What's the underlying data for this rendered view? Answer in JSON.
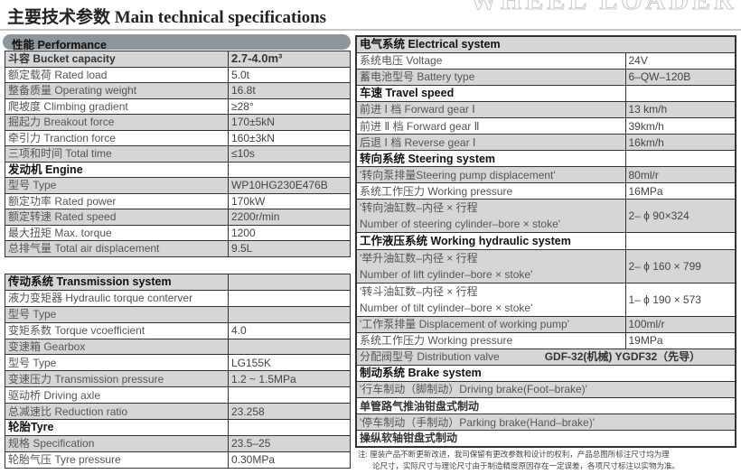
{
  "title": "主要技术参数 Main technical specifications",
  "performance_header": "性能 Performance",
  "performance": [
    {
      "label": "斗容 Bucket capacity",
      "value": "2.7-4.0m³",
      "style": "bold"
    },
    {
      "label": "额定载荷 Rated load",
      "value": "5.0t"
    },
    {
      "label": "整备质量 Operating weight",
      "value": "16.8t"
    },
    {
      "label": "爬坡度 Climbing gradient",
      "value": "≥28°"
    },
    {
      "label": "掘起力 Breakout force",
      "value": "170±5kN"
    },
    {
      "label": "牵引力 Tranction force",
      "value": "160±3kN"
    },
    {
      "label": "三项和时间 Total time",
      "value": "≤10s"
    },
    {
      "label": "发动机 Engine",
      "value": "",
      "header": true
    },
    {
      "label": "型号 Type",
      "value": "WP10HG230E476B"
    },
    {
      "label": "额定功率 Rated power",
      "value": "170kW"
    },
    {
      "label": "额定转速 Rated speed",
      "value": "2200r/min"
    },
    {
      "label": "最大扭矩 Max. torque",
      "value": "1200"
    },
    {
      "label": "总排气量 Total air displacement",
      "value": "9.5L"
    }
  ],
  "transmission": [
    {
      "label": "传动系统 Transmission system",
      "value": "",
      "header": true
    },
    {
      "label": "液力变矩器 Hydraulic torque conterver",
      "value": ""
    },
    {
      "label": "型号 Type",
      "value": ""
    },
    {
      "label": "变矩系数 Torque vcoefficient",
      "value": "4.0"
    },
    {
      "label": "变速箱 Gearbox",
      "value": ""
    },
    {
      "label": "型号 Type",
      "value": "LG155K"
    },
    {
      "label": "变速压力 Transmission pressure",
      "value": "1.2 ~ 1.5MPa"
    },
    {
      "label": "驱动桥 Driving axle",
      "value": ""
    },
    {
      "label": "总减速比 Reduction ratio",
      "value": "23.258"
    },
    {
      "label": "轮胎Tyre",
      "value": "",
      "header": true
    },
    {
      "label": "规格 Specification",
      "value": "23.5–25"
    },
    {
      "label": "轮胎气压 Tyre pressure",
      "value": "0.30MPa"
    }
  ],
  "right": [
    {
      "label": "电气系统 Electrical system",
      "header": true,
      "full": true
    },
    {
      "label": "系统电压 Voltage",
      "value": "24V"
    },
    {
      "label": "蓄电池型号 Battery type",
      "value": "6–QW–120B"
    },
    {
      "label": "车速 Travel speed",
      "value": "",
      "header": true
    },
    {
      "label": "前进 Ⅰ 档 Forward gear  Ⅰ",
      "value": "13 km/h"
    },
    {
      "label": "前进 Ⅱ 档 Forward gear  Ⅱ",
      "value": "39km/h"
    },
    {
      "label": "后退 Ⅰ 档 Reverse gear  Ⅰ",
      "value": "16km/h"
    },
    {
      "label": "转向系统 Steering system",
      "value": "",
      "header": true
    },
    {
      "label": "'转向泵排量Steering pump displacement'",
      "value": "80ml/r"
    },
    {
      "label": "系统工作压力 Working pressure",
      "value": "16MPa"
    },
    {
      "label": "'转向油缸数–内径 × 行程",
      "label2": "Number of steering cylinder–bore × stoke'",
      "value": "2– ϕ 90×324"
    },
    {
      "label": "工作液压系统 Working hydraulic system",
      "value": "",
      "header": true
    },
    {
      "label": "'举升油缸数–内径 × 行程",
      "label2": "Number of lift cylinder–bore × stoke'",
      "value": "2– ϕ 160 × 799"
    },
    {
      "label": "'转斗油缸数–内径 × 行程",
      "label2": "Number of tilt cylinder–bore × stoke'",
      "value": "1– ϕ 190 × 573"
    },
    {
      "label": "'工作泵排量 Displacement of working pump'",
      "value": "100ml/r"
    },
    {
      "label": "系统工作压力 Working pressure",
      "value": "19MPa"
    },
    {
      "label": "分配阀型号 Distribution valve",
      "value": "GDF-32(机械)  YGDF32（先导）",
      "full": true
    },
    {
      "label": "制动系统 Brake system",
      "header": true,
      "full": true
    },
    {
      "label": "'行车制动（脚制动）Driving brake(Foot–brake)'",
      "full": true
    },
    {
      "label": "单管路气推油钳盘式制动",
      "full": true,
      "style": "bold"
    },
    {
      "label": "'停车制动（手制动）Parking brake(Hand–brake)'",
      "full": true
    },
    {
      "label": "操纵软轴钳盘式制动",
      "full": true,
      "style": "bold"
    }
  ],
  "note": [
    "注: 厘装产品不断更新改进，我司保留有更改参数和设计的权利，产品总图所标注尺寸均为理",
    "论尺寸，实际尺寸与理论尺寸由于制造精度原因存在一定误差，各项尺寸标注以实物为准。"
  ]
}
